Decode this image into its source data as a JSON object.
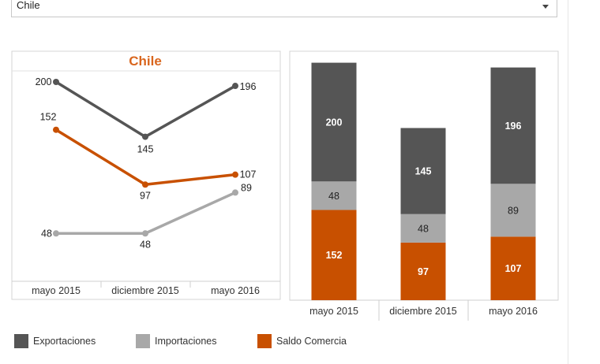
{
  "filter": {
    "selected": "Chile"
  },
  "colors": {
    "exportaciones": "#555555",
    "importaciones": "#a8a8a8",
    "saldo": "#c85000",
    "title": "#d9661e"
  },
  "legend": [
    {
      "label": "Exportaciones",
      "color": "#555555"
    },
    {
      "label": "Importaciones",
      "color": "#a8a8a8"
    },
    {
      "label": "Saldo Comercia",
      "color": "#c85000"
    }
  ],
  "chart_data": [
    {
      "type": "line",
      "title": "Chile",
      "categories": [
        "mayo 2015",
        "diciembre 2015",
        "mayo 2016"
      ],
      "series": [
        {
          "name": "Exportaciones",
          "values": [
            200,
            145,
            196
          ],
          "color": "#555555"
        },
        {
          "name": "Saldo Comercia",
          "values": [
            152,
            97,
            107
          ],
          "color": "#c85000"
        },
        {
          "name": "Importaciones",
          "values": [
            48,
            48,
            89
          ],
          "color": "#a8a8a8"
        }
      ],
      "ylim": [
        0,
        230
      ],
      "grid": false
    },
    {
      "type": "bar",
      "stacked": true,
      "categories": [
        "mayo 2015",
        "diciembre 2015",
        "mayo 2016"
      ],
      "series": [
        {
          "name": "Saldo Comercia",
          "values": [
            152,
            97,
            107
          ],
          "color": "#c85000"
        },
        {
          "name": "Importaciones",
          "values": [
            48,
            48,
            89
          ],
          "color": "#a8a8a8"
        },
        {
          "name": "Exportaciones",
          "values": [
            200,
            145,
            196
          ],
          "color": "#555555"
        }
      ],
      "ylim": [
        0,
        400
      ],
      "grid": false
    }
  ]
}
